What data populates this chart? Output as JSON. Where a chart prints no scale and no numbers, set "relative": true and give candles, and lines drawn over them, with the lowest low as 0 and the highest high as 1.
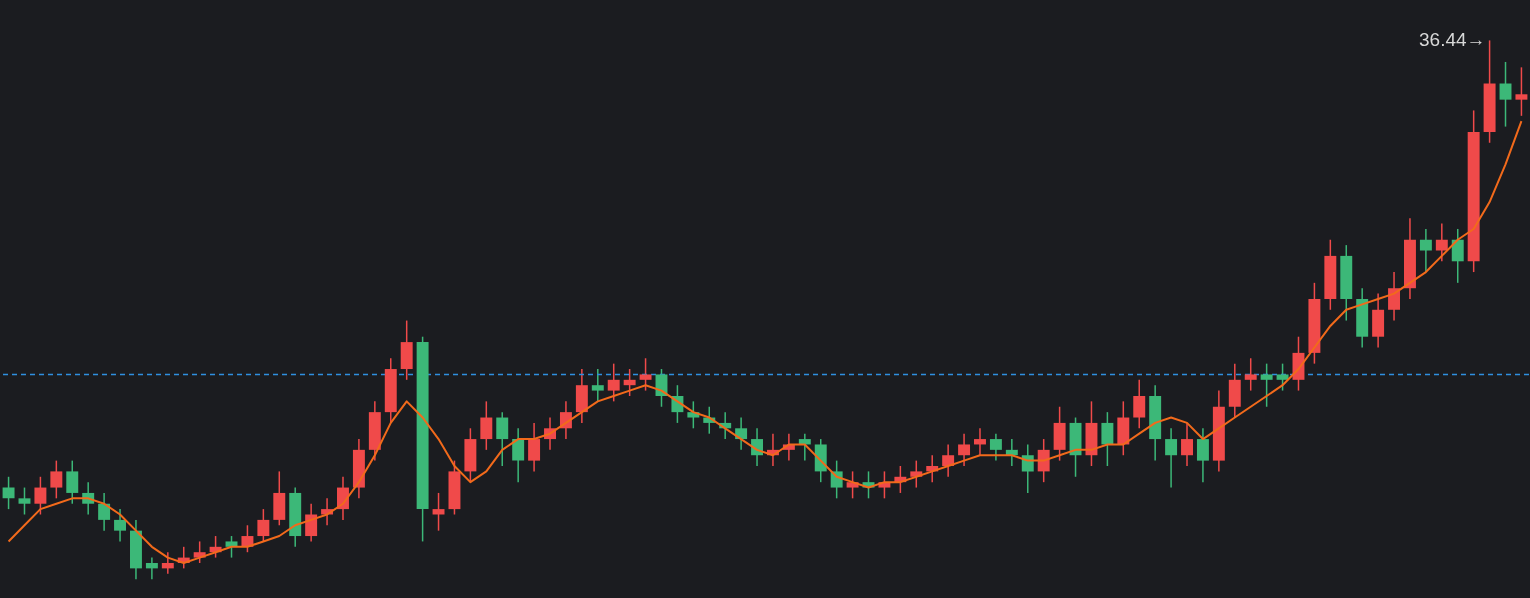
{
  "chart_data": {
    "type": "candlestick",
    "relative": true,
    "categories": [
      null,
      null,
      null,
      null,
      null,
      null,
      null,
      null,
      null,
      null,
      null,
      null,
      null,
      null,
      null,
      null,
      null,
      null,
      null,
      null,
      null,
      null,
      null,
      null,
      null,
      null,
      null,
      null,
      null,
      null,
      null,
      null,
      null,
      null,
      null,
      null,
      null,
      null,
      null,
      null,
      null,
      null,
      null,
      null,
      null,
      null,
      null,
      null,
      null,
      null,
      null,
      null,
      null,
      null,
      null,
      null,
      null,
      null,
      null,
      null,
      null,
      null,
      null,
      null,
      null,
      null,
      null,
      null,
      null,
      null,
      null,
      null,
      null,
      null,
      null,
      null,
      null,
      null,
      null,
      null,
      null,
      null,
      null,
      null,
      null,
      null,
      null,
      null,
      null,
      null,
      null,
      null,
      null,
      null,
      null,
      null
    ],
    "colors": [
      "#3cb878",
      "#3cb878",
      "#f04a4a",
      "#f04a4a",
      "#3cb878",
      "#3cb878",
      "#3cb878",
      "#3cb878",
      "#3cb878",
      "#3cb878",
      "#f04a4a",
      "#f04a4a",
      "#f04a4a",
      "#f04a4a",
      "#3cb878",
      "#f04a4a",
      "#f04a4a",
      "#f04a4a",
      "#3cb878",
      "#f04a4a",
      "#f04a4a",
      "#f04a4a",
      "#f04a4a",
      "#f04a4a",
      "#f04a4a",
      "#f04a4a",
      "#3cb878",
      "#f04a4a",
      "#f04a4a",
      "#f04a4a",
      "#f04a4a",
      "#3cb878",
      "#3cb878",
      "#f04a4a",
      "#f04a4a",
      "#f04a4a",
      "#f04a4a",
      "#3cb878",
      "#f04a4a",
      "#f04a4a",
      "#f04a4a",
      "#3cb878",
      "#3cb878",
      "#3cb878",
      "#3cb878",
      "#3cb878",
      "#3cb878",
      "#3cb878",
      "#f04a4a",
      "#f04a4a",
      "#3cb878",
      "#3cb878",
      "#3cb878",
      "#f04a4a",
      "#3cb878",
      "#f04a4a",
      "#f04a4a",
      "#f04a4a",
      "#f04a4a",
      "#f04a4a",
      "#f04a4a",
      "#f04a4a",
      "#3cb878",
      "#3cb878",
      "#3cb878",
      "#f04a4a",
      "#f04a4a",
      "#3cb878",
      "#f04a4a",
      "#3cb878",
      "#f04a4a",
      "#f04a4a",
      "#3cb878",
      "#3cb878",
      "#f04a4a",
      "#3cb878",
      "#f04a4a",
      "#f04a4a",
      "#f04a4a",
      "#3cb878",
      "#3cb878",
      "#f04a4a",
      "#f04a4a",
      "#f04a4a",
      "#3cb878",
      "#3cb878",
      "#f04a4a",
      "#f04a4a",
      "#f04a4a",
      "#3cb878",
      "#f04a4a",
      "#3cb878",
      "#f04a4a",
      "#f04a4a",
      "#3cb878",
      "#f04a4a"
    ],
    "ohlc": [
      [
        0.17,
        0.19,
        0.13,
        0.15
      ],
      [
        0.15,
        0.17,
        0.12,
        0.14
      ],
      [
        0.14,
        0.19,
        0.12,
        0.17
      ],
      [
        0.17,
        0.22,
        0.15,
        0.2
      ],
      [
        0.2,
        0.22,
        0.14,
        0.16
      ],
      [
        0.16,
        0.18,
        0.12,
        0.14
      ],
      [
        0.14,
        0.16,
        0.09,
        0.11
      ],
      [
        0.11,
        0.13,
        0.07,
        0.09
      ],
      [
        0.09,
        0.11,
        0.0,
        0.02
      ],
      [
        0.03,
        0.04,
        0.0,
        0.02
      ],
      [
        0.02,
        0.05,
        0.01,
        0.03
      ],
      [
        0.03,
        0.06,
        0.02,
        0.04
      ],
      [
        0.04,
        0.07,
        0.03,
        0.05
      ],
      [
        0.05,
        0.08,
        0.04,
        0.06
      ],
      [
        0.07,
        0.08,
        0.04,
        0.06
      ],
      [
        0.06,
        0.1,
        0.05,
        0.08
      ],
      [
        0.08,
        0.13,
        0.07,
        0.11
      ],
      [
        0.11,
        0.2,
        0.1,
        0.16
      ],
      [
        0.16,
        0.17,
        0.06,
        0.08
      ],
      [
        0.08,
        0.14,
        0.07,
        0.12
      ],
      [
        0.12,
        0.15,
        0.1,
        0.13
      ],
      [
        0.13,
        0.19,
        0.11,
        0.17
      ],
      [
        0.17,
        0.26,
        0.15,
        0.24
      ],
      [
        0.24,
        0.33,
        0.22,
        0.31
      ],
      [
        0.31,
        0.41,
        0.29,
        0.39
      ],
      [
        0.39,
        0.48,
        0.37,
        0.44
      ],
      [
        0.44,
        0.45,
        0.07,
        0.13
      ],
      [
        0.12,
        0.16,
        0.09,
        0.13
      ],
      [
        0.13,
        0.22,
        0.12,
        0.2
      ],
      [
        0.2,
        0.28,
        0.18,
        0.26
      ],
      [
        0.26,
        0.33,
        0.24,
        0.3
      ],
      [
        0.3,
        0.31,
        0.21,
        0.26
      ],
      [
        0.26,
        0.28,
        0.18,
        0.22
      ],
      [
        0.22,
        0.29,
        0.2,
        0.26
      ],
      [
        0.26,
        0.3,
        0.24,
        0.28
      ],
      [
        0.28,
        0.33,
        0.26,
        0.31
      ],
      [
        0.31,
        0.39,
        0.29,
        0.36
      ],
      [
        0.36,
        0.39,
        0.33,
        0.35
      ],
      [
        0.35,
        0.4,
        0.33,
        0.37
      ],
      [
        0.36,
        0.39,
        0.34,
        0.37
      ],
      [
        0.37,
        0.41,
        0.35,
        0.38
      ],
      [
        0.38,
        0.39,
        0.32,
        0.34
      ],
      [
        0.34,
        0.36,
        0.29,
        0.31
      ],
      [
        0.31,
        0.33,
        0.28,
        0.3
      ],
      [
        0.3,
        0.32,
        0.27,
        0.29
      ],
      [
        0.29,
        0.31,
        0.26,
        0.28
      ],
      [
        0.28,
        0.3,
        0.24,
        0.26
      ],
      [
        0.26,
        0.28,
        0.21,
        0.23
      ],
      [
        0.23,
        0.27,
        0.21,
        0.24
      ],
      [
        0.24,
        0.27,
        0.22,
        0.25
      ],
      [
        0.26,
        0.27,
        0.22,
        0.25
      ],
      [
        0.25,
        0.26,
        0.18,
        0.2
      ],
      [
        0.2,
        0.22,
        0.15,
        0.17
      ],
      [
        0.17,
        0.2,
        0.15,
        0.18
      ],
      [
        0.18,
        0.2,
        0.15,
        0.17
      ],
      [
        0.17,
        0.2,
        0.15,
        0.18
      ],
      [
        0.18,
        0.21,
        0.16,
        0.19
      ],
      [
        0.19,
        0.22,
        0.17,
        0.2
      ],
      [
        0.2,
        0.23,
        0.18,
        0.21
      ],
      [
        0.21,
        0.25,
        0.19,
        0.23
      ],
      [
        0.23,
        0.27,
        0.21,
        0.25
      ],
      [
        0.25,
        0.28,
        0.23,
        0.26
      ],
      [
        0.26,
        0.27,
        0.22,
        0.24
      ],
      [
        0.24,
        0.26,
        0.21,
        0.23
      ],
      [
        0.23,
        0.25,
        0.16,
        0.2
      ],
      [
        0.2,
        0.26,
        0.18,
        0.24
      ],
      [
        0.24,
        0.32,
        0.22,
        0.29
      ],
      [
        0.29,
        0.3,
        0.19,
        0.23
      ],
      [
        0.23,
        0.33,
        0.21,
        0.29
      ],
      [
        0.29,
        0.31,
        0.21,
        0.25
      ],
      [
        0.25,
        0.33,
        0.23,
        0.3
      ],
      [
        0.3,
        0.37,
        0.28,
        0.34
      ],
      [
        0.34,
        0.36,
        0.22,
        0.26
      ],
      [
        0.26,
        0.28,
        0.17,
        0.23
      ],
      [
        0.23,
        0.29,
        0.21,
        0.26
      ],
      [
        0.26,
        0.28,
        0.18,
        0.22
      ],
      [
        0.22,
        0.35,
        0.2,
        0.32
      ],
      [
        0.32,
        0.4,
        0.3,
        0.37
      ],
      [
        0.37,
        0.41,
        0.35,
        0.38
      ],
      [
        0.38,
        0.4,
        0.32,
        0.37
      ],
      [
        0.38,
        0.4,
        0.35,
        0.37
      ],
      [
        0.37,
        0.45,
        0.35,
        0.42
      ],
      [
        0.42,
        0.55,
        0.4,
        0.52
      ],
      [
        0.52,
        0.63,
        0.5,
        0.6
      ],
      [
        0.6,
        0.62,
        0.48,
        0.52
      ],
      [
        0.52,
        0.54,
        0.43,
        0.45
      ],
      [
        0.45,
        0.53,
        0.43,
        0.5
      ],
      [
        0.5,
        0.57,
        0.48,
        0.54
      ],
      [
        0.54,
        0.67,
        0.52,
        0.63
      ],
      [
        0.63,
        0.65,
        0.57,
        0.61
      ],
      [
        0.61,
        0.66,
        0.59,
        0.63
      ],
      [
        0.63,
        0.65,
        0.55,
        0.59
      ],
      [
        0.59,
        0.87,
        0.57,
        0.83
      ],
      [
        0.83,
        1.0,
        0.81,
        0.92
      ],
      [
        0.92,
        0.96,
        0.84,
        0.89
      ],
      [
        0.89,
        0.95,
        0.86,
        0.9
      ]
    ],
    "series": [
      {
        "type": "line",
        "color": "#f26a1b",
        "values": [
          0.07,
          0.1,
          0.13,
          0.14,
          0.15,
          0.15,
          0.14,
          0.12,
          0.09,
          0.06,
          0.04,
          0.03,
          0.04,
          0.05,
          0.06,
          0.06,
          0.07,
          0.08,
          0.1,
          0.11,
          0.12,
          0.14,
          0.18,
          0.23,
          0.29,
          0.33,
          0.3,
          0.26,
          0.21,
          0.18,
          0.2,
          0.24,
          0.26,
          0.26,
          0.27,
          0.29,
          0.31,
          0.33,
          0.34,
          0.35,
          0.36,
          0.35,
          0.33,
          0.31,
          0.3,
          0.28,
          0.26,
          0.24,
          0.23,
          0.25,
          0.25,
          0.22,
          0.19,
          0.18,
          0.17,
          0.18,
          0.18,
          0.19,
          0.2,
          0.21,
          0.22,
          0.23,
          0.23,
          0.23,
          0.22,
          0.22,
          0.23,
          0.24,
          0.24,
          0.25,
          0.25,
          0.27,
          0.29,
          0.3,
          0.29,
          0.26,
          0.28,
          0.3,
          0.32,
          0.34,
          0.36,
          0.39,
          0.43,
          0.47,
          0.5,
          0.51,
          0.52,
          0.53,
          0.55,
          0.57,
          0.6,
          0.63,
          0.65,
          0.7,
          0.77,
          0.85
        ]
      }
    ],
    "ref_lines": [
      {
        "axis": "y",
        "value": 0.38,
        "color": "#2f8fe0",
        "line_style": "dashed"
      }
    ],
    "annotations": [
      "36.44→"
    ],
    "grid": false
  }
}
